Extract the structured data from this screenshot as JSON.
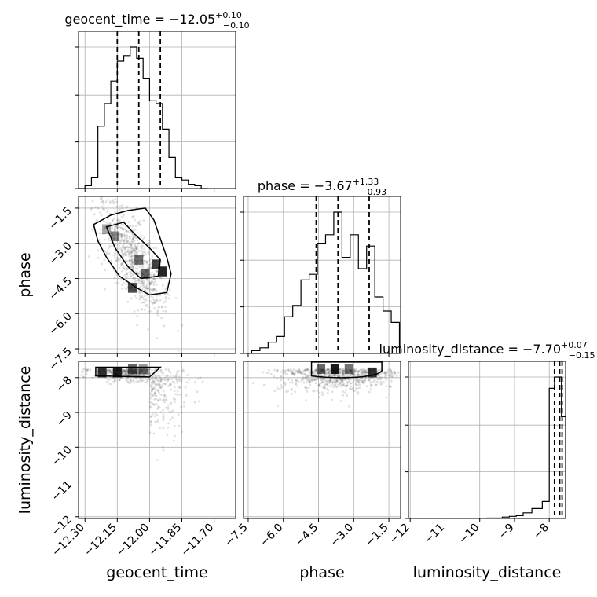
{
  "chart_data": {
    "type": "corner",
    "parameters": [
      "geocent_time",
      "phase",
      "luminosity_distance"
    ],
    "titles": [
      {
        "name": "geocent_time",
        "prefix": "geocent_time = −12.05",
        "sup": "+0.10",
        "sub": "−0.10"
      },
      {
        "name": "phase",
        "prefix": "phase = −3.67",
        "sup": "+1.33",
        "sub": "−0.93"
      },
      {
        "name": "luminosity_distance",
        "prefix": "luminosity_distance = −7.70",
        "sup": "+0.07",
        "sub": "−0.15"
      }
    ],
    "ranges": {
      "geocent_time": [
        -12.33,
        -11.6
      ],
      "phase": [
        -7.7,
        -1.0
      ],
      "luminosity_distance": [
        -12.05,
        -7.53
      ]
    },
    "ticks": {
      "geocent_time": [
        -12.3,
        -12.15,
        -12.0,
        -11.85,
        -11.7
      ],
      "geocent_time_labels": [
        "−12.30",
        "−12.15",
        "−12.00",
        "−11.85",
        "−11.70"
      ],
      "phase": [
        -7.5,
        -6.0,
        -4.5,
        -3.0,
        -1.5
      ],
      "phase_labels": [
        "−7.5",
        "−6.0",
        "−4.5",
        "−3.0",
        "−1.5"
      ],
      "luminosity_distance": [
        -12,
        -11,
        -10,
        -9,
        -8
      ],
      "luminosity_distance_labels": [
        "−12",
        "−11",
        "−10",
        "−9",
        "−8"
      ]
    },
    "quantiles": {
      "geocent_time": [
        -12.15,
        -12.05,
        -11.95
      ],
      "phase": [
        -4.6,
        -3.67,
        -2.34
      ],
      "luminosity_distance": [
        -7.85,
        -7.7,
        -7.63
      ]
    },
    "hist_geocent_time": {
      "bin_edges": [
        -12.33,
        -12.3,
        -12.27,
        -12.24,
        -12.21,
        -12.18,
        -12.15,
        -12.12,
        -12.09,
        -12.06,
        -12.03,
        -12.0,
        -11.97,
        -11.94,
        -11.91,
        -11.88,
        -11.85,
        -11.82,
        -11.79,
        -11.76,
        -11.73
      ],
      "counts": [
        0,
        0.02,
        0.08,
        0.44,
        0.6,
        0.76,
        0.9,
        0.94,
        1.0,
        0.92,
        0.78,
        0.62,
        0.6,
        0.42,
        0.22,
        0.08,
        0.06,
        0.03,
        0.02,
        0
      ]
    },
    "hist_phase": {
      "bin_edges": [
        -7.7,
        -7.35,
        -7.0,
        -6.65,
        -6.3,
        -5.95,
        -5.6,
        -5.25,
        -4.9,
        -4.55,
        -4.2,
        -3.85,
        -3.5,
        -3.15,
        -2.8,
        -2.45,
        -2.1,
        -1.75,
        -1.4,
        -1.05
      ],
      "counts": [
        0,
        0.02,
        0.04,
        0.08,
        0.12,
        0.26,
        0.34,
        0.52,
        0.56,
        0.78,
        0.84,
        1.0,
        0.68,
        0.84,
        0.6,
        0.76,
        0.4,
        0.3,
        0.22
      ]
    },
    "hist_luminosity_distance": {
      "bin_edges": [
        -12.05,
        -11.6,
        -11.15,
        -10.7,
        -10.25,
        -9.8,
        -9.35,
        -9.15,
        -8.95,
        -8.75,
        -8.5,
        -8.2,
        -8.0,
        -7.85,
        -7.75,
        -7.65,
        -7.53
      ],
      "counts": [
        0,
        0,
        0,
        0,
        0,
        0.003,
        0.01,
        0.015,
        0.02,
        0.04,
        0.07,
        0.12,
        0.92,
        1.0,
        1.0,
        0.72
      ]
    }
  }
}
